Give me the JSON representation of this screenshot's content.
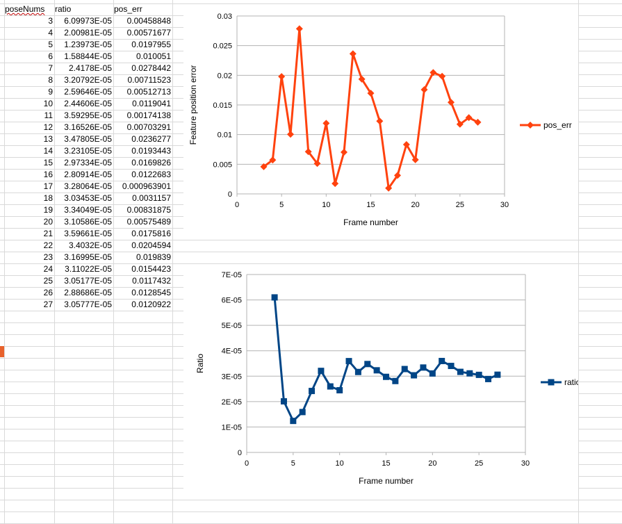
{
  "sheet": {
    "headers": [
      "poseNums",
      "ratio",
      "pos_err"
    ],
    "rows": [
      [
        "3",
        "6.09973E-05",
        "0.00458848"
      ],
      [
        "4",
        "2.00981E-05",
        "0.00571677"
      ],
      [
        "5",
        "1.23973E-05",
        "0.0197955"
      ],
      [
        "6",
        "1.58844E-05",
        "0.010051"
      ],
      [
        "7",
        "2.4178E-05",
        "0.0278442"
      ],
      [
        "8",
        "3.20792E-05",
        "0.00711523"
      ],
      [
        "9",
        "2.59646E-05",
        "0.00512713"
      ],
      [
        "10",
        "2.44606E-05",
        "0.0119041"
      ],
      [
        "11",
        "3.59295E-05",
        "0.00174138"
      ],
      [
        "12",
        "3.16526E-05",
        "0.00703291"
      ],
      [
        "13",
        "3.47805E-05",
        "0.0236277"
      ],
      [
        "14",
        "3.23105E-05",
        "0.0193443"
      ],
      [
        "15",
        "2.97334E-05",
        "0.0169826"
      ],
      [
        "16",
        "2.80914E-05",
        "0.0122683"
      ],
      [
        "17",
        "3.28064E-05",
        "0.000963901"
      ],
      [
        "18",
        "3.03453E-05",
        "0.0031157"
      ],
      [
        "19",
        "3.34049E-05",
        "0.00831875"
      ],
      [
        "20",
        "3.10586E-05",
        "0.00575489"
      ],
      [
        "21",
        "3.59661E-05",
        "0.0175816"
      ],
      [
        "22",
        "3.4032E-05",
        "0.0204594"
      ],
      [
        "23",
        "3.16995E-05",
        "0.019839"
      ],
      [
        "24",
        "3.11022E-05",
        "0.0154423"
      ],
      [
        "25",
        "3.05177E-05",
        "0.0117432"
      ],
      [
        "26",
        "2.88686E-05",
        "0.0128545"
      ],
      [
        "27",
        "3.05777E-05",
        "0.0120922"
      ]
    ]
  },
  "chart_data": [
    {
      "type": "line",
      "xlabel": "Frame number",
      "ylabel": "Feature position  error",
      "xlim": [
        0,
        30
      ],
      "ylim": [
        0,
        0.03
      ],
      "xticks": [
        "0",
        "5",
        "10",
        "15",
        "20",
        "25",
        "30"
      ],
      "yticks": [
        "0",
        "0.005",
        "0.01",
        "0.015",
        "0.02",
        "0.025",
        "0.03"
      ],
      "grid": "horizontal",
      "legend": "right",
      "marker": "diamond",
      "color": "#ff420e",
      "series": [
        {
          "name": "pos_err",
          "x": [
            3,
            4,
            5,
            6,
            7,
            8,
            9,
            10,
            11,
            12,
            13,
            14,
            15,
            16,
            17,
            18,
            19,
            20,
            21,
            22,
            23,
            24,
            25,
            26,
            27
          ],
          "values": [
            0.00458848,
            0.00571677,
            0.0197955,
            0.010051,
            0.0278442,
            0.00711523,
            0.00512713,
            0.0119041,
            0.00174138,
            0.00703291,
            0.0236277,
            0.0193443,
            0.0169826,
            0.0122683,
            0.000963901,
            0.0031157,
            0.00831875,
            0.00575489,
            0.0175816,
            0.0204594,
            0.019839,
            0.0154423,
            0.0117432,
            0.0128545,
            0.0120922
          ]
        }
      ]
    },
    {
      "type": "line",
      "xlabel": "Frame number",
      "ylabel": "Ratio",
      "xlim": [
        0,
        30
      ],
      "ylim": [
        0,
        7e-05
      ],
      "xticks": [
        "0",
        "5",
        "10",
        "15",
        "20",
        "25",
        "30"
      ],
      "yticks": [
        "0",
        "1E-05",
        "2E-05",
        "3E-05",
        "4E-05",
        "5E-05",
        "6E-05",
        "7E-05"
      ],
      "grid": "horizontal",
      "legend": "right",
      "marker": "square",
      "color": "#004586",
      "series": [
        {
          "name": "ratio",
          "x": [
            3,
            4,
            5,
            6,
            7,
            8,
            9,
            10,
            11,
            12,
            13,
            14,
            15,
            16,
            17,
            18,
            19,
            20,
            21,
            22,
            23,
            24,
            25,
            26,
            27
          ],
          "values": [
            6.09973e-05,
            2.00981e-05,
            1.23973e-05,
            1.58844e-05,
            2.4178e-05,
            3.20792e-05,
            2.59646e-05,
            2.44606e-05,
            3.59295e-05,
            3.16526e-05,
            3.47805e-05,
            3.23105e-05,
            2.97334e-05,
            2.80914e-05,
            3.28064e-05,
            3.03453e-05,
            3.34049e-05,
            3.10586e-05,
            3.59661e-05,
            3.4032e-05,
            3.16995e-05,
            3.11022e-05,
            3.05177e-05,
            2.88686e-05,
            3.05777e-05
          ]
        }
      ]
    }
  ]
}
